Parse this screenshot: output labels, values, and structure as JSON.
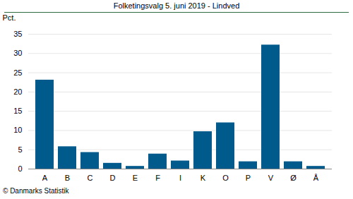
{
  "chart_data": {
    "type": "bar",
    "title": "Folketingsvalg 5. juni 2019 - Lindved",
    "y_label": "Pct.",
    "caption": "© Danmarks Statistik",
    "categories": [
      "A",
      "B",
      "C",
      "D",
      "E",
      "F",
      "I",
      "K",
      "O",
      "P",
      "V",
      "Ø",
      "Å"
    ],
    "values": [
      23.1,
      5.8,
      4.3,
      1.5,
      0.7,
      3.9,
      2.1,
      9.7,
      12.0,
      1.9,
      32.2,
      1.9,
      0.7
    ],
    "color": "#005a8c",
    "ylim": [
      0,
      35
    ],
    "yticks": [
      0,
      5,
      10,
      15,
      20,
      25,
      30,
      35
    ],
    "grid": true
  }
}
